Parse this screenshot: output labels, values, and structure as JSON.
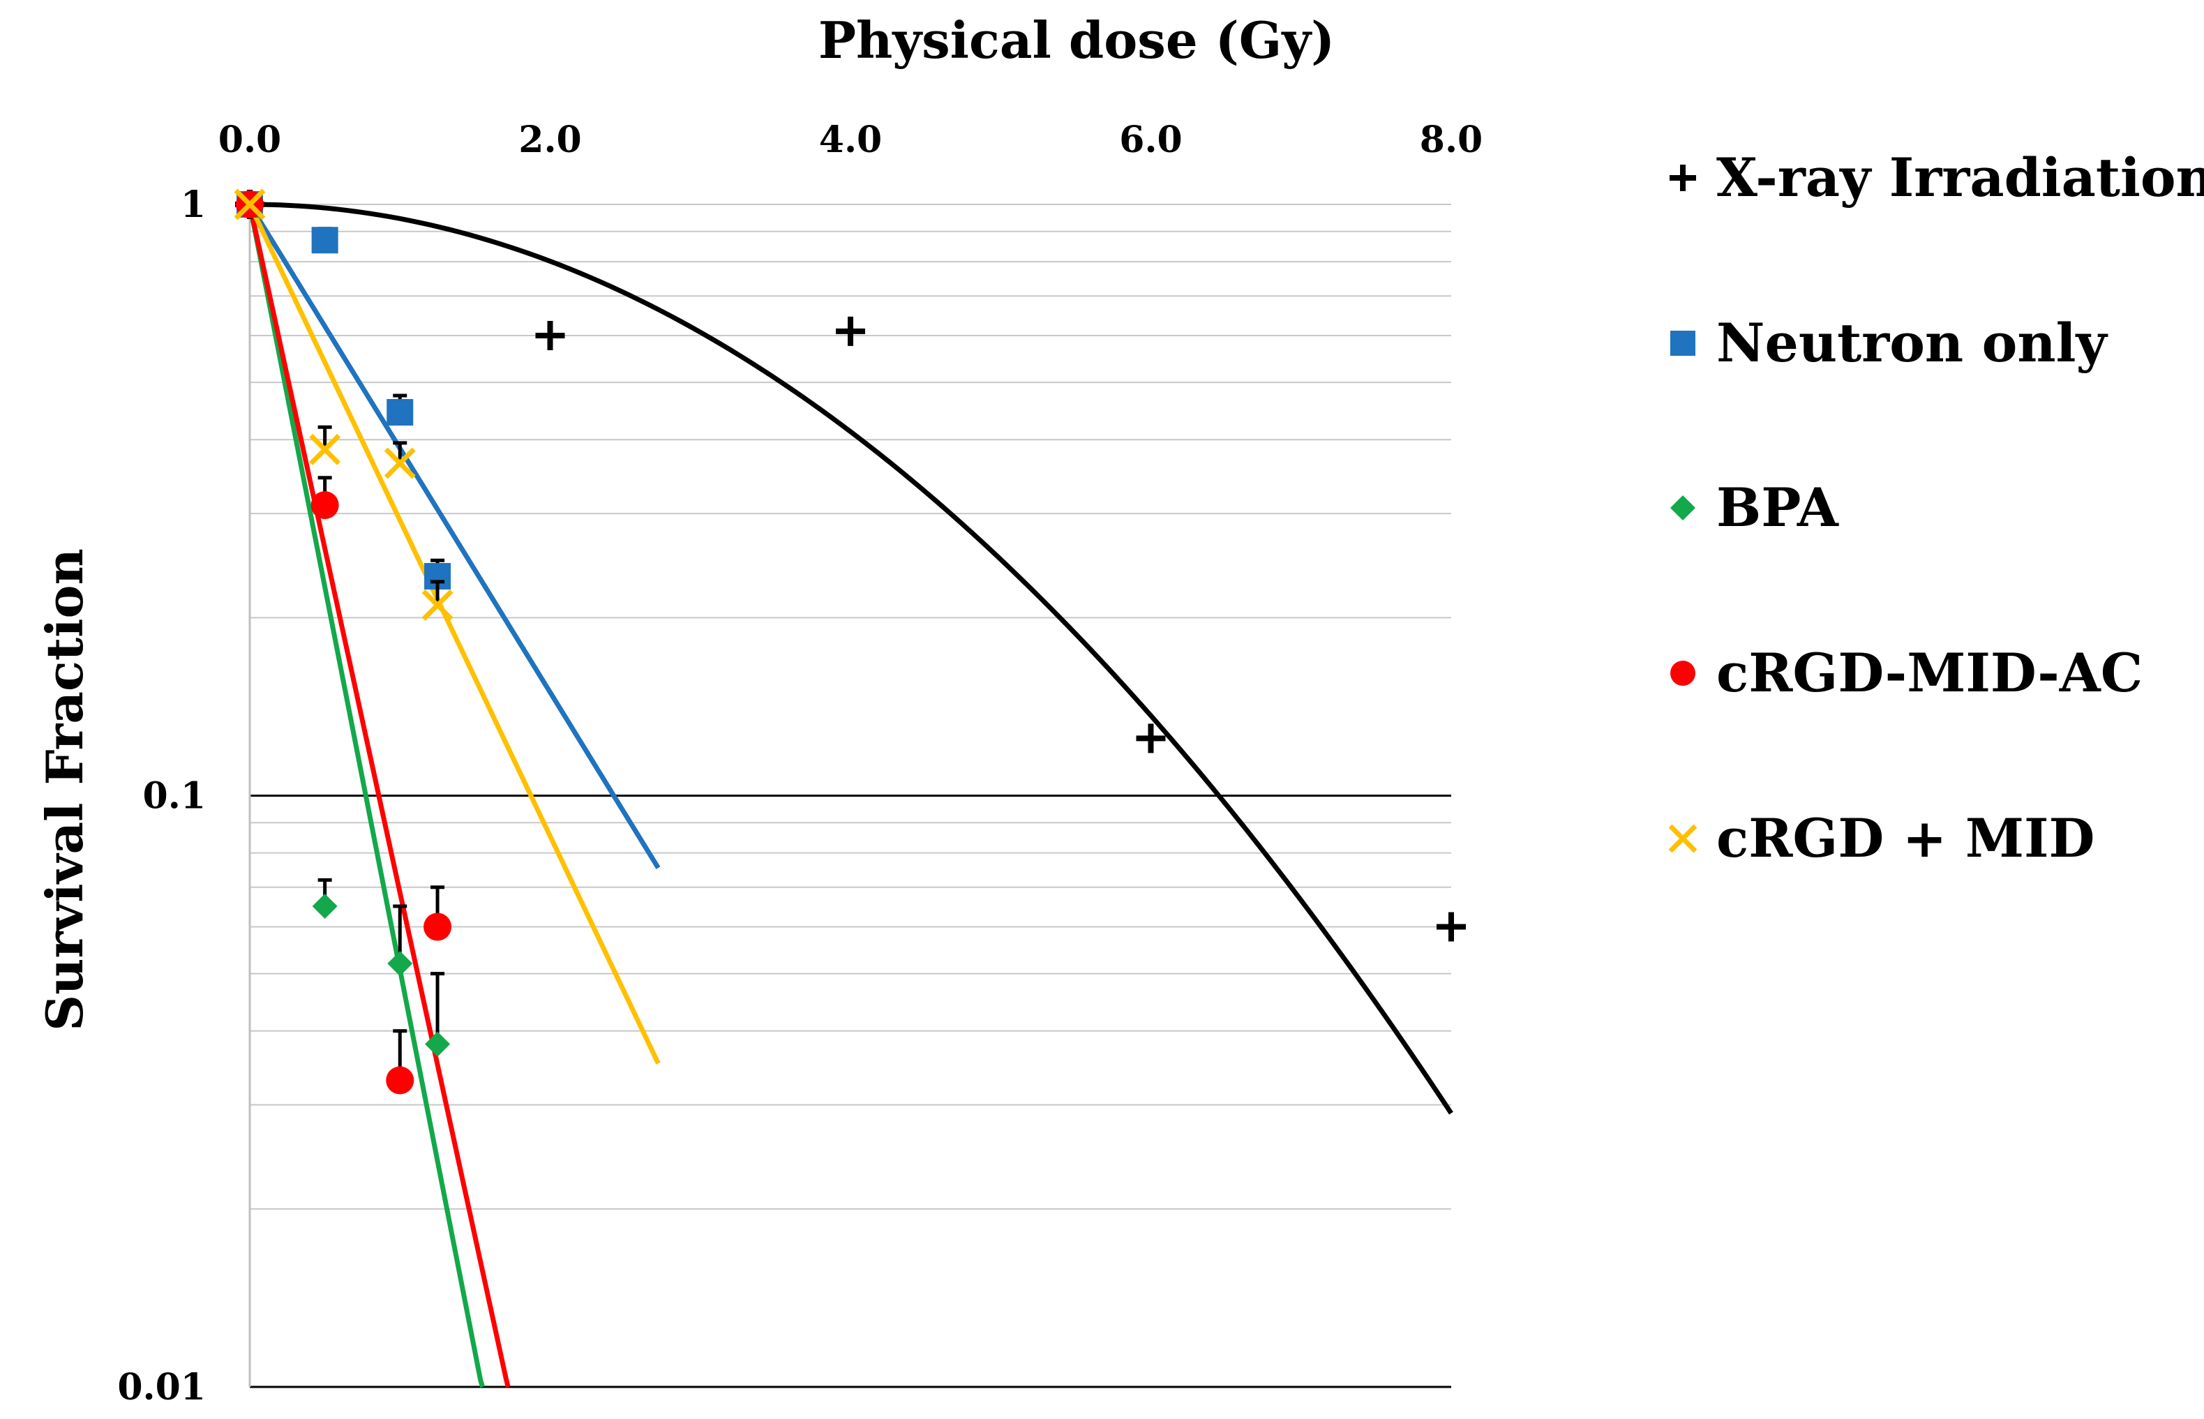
{
  "chart_data": {
    "type": "scatter",
    "title": "",
    "xlabel": "Physical dose (Gy)",
    "ylabel": "Survival Fraction",
    "xaxis_position": "top",
    "xlim": [
      0,
      8
    ],
    "ylim": [
      0.01,
      1
    ],
    "yscale": "log",
    "xticks": [
      0,
      2,
      4,
      6,
      8
    ],
    "xtick_labels": [
      "0.0",
      "2.0",
      "4.0",
      "6.0",
      "8.0"
    ],
    "yticks": [
      1,
      0.1,
      0.01
    ],
    "ytick_labels": [
      "1",
      "0.1",
      "0.01"
    ],
    "legend_position": "right",
    "series": [
      {
        "name": "X-ray Irradiation",
        "color": "#000000",
        "marker": "plus",
        "points": [
          [
            0,
            1.0
          ],
          [
            2.0,
            0.6
          ],
          [
            4.0,
            0.61
          ],
          [
            6.0,
            0.125
          ],
          [
            8.0,
            0.06
          ]
        ],
        "errors": [
          0,
          0,
          0,
          0,
          0
        ],
        "fit": {
          "model": "linear-quadratic",
          "alpha": 0.0,
          "beta": 0.0553,
          "x_range": [
            0,
            8
          ]
        }
      },
      {
        "name": "Neutron only",
        "color": "#1f73bf",
        "marker": "square",
        "points": [
          [
            0,
            1.0
          ],
          [
            0.5,
            0.87
          ],
          [
            1.0,
            0.445
          ],
          [
            1.25,
            0.235
          ]
        ],
        "errors": [
          0,
          0.04,
          0.03,
          0.015
        ],
        "fit": {
          "model": "exponential",
          "k": 0.95,
          "x_range": [
            0,
            2.72
          ]
        }
      },
      {
        "name": "BPA",
        "color": "#13a84a",
        "marker": "diamond",
        "points": [
          [
            0,
            1.0
          ],
          [
            0.5,
            0.065
          ],
          [
            1.0,
            0.052
          ],
          [
            1.25,
            0.038
          ]
        ],
        "errors": [
          0,
          0.007,
          0.013,
          0.012
        ],
        "fit": {
          "model": "exponential",
          "k": 2.98,
          "x_range": [
            0,
            1.55
          ]
        }
      },
      {
        "name": "cRGD-MID-AC",
        "color": "#ff0000",
        "marker": "circle",
        "points": [
          [
            0,
            1.0
          ],
          [
            0.5,
            0.31
          ],
          [
            1.0,
            0.033
          ],
          [
            1.25,
            0.06
          ]
        ],
        "errors": [
          0,
          0.035,
          0.007,
          0.01
        ],
        "fit": {
          "model": "exponential",
          "k": 2.68,
          "x_range": [
            0,
            1.72
          ]
        }
      },
      {
        "name": "cRGD + MID",
        "color": "#ffc000",
        "marker": "x",
        "points": [
          [
            0,
            1.0
          ],
          [
            0.5,
            0.385
          ],
          [
            1.0,
            0.365
          ],
          [
            1.25,
            0.21
          ]
        ],
        "errors": [
          0,
          0.035,
          0.03,
          0.02
        ],
        "fit": {
          "model": "exponential",
          "k": 1.23,
          "x_range": [
            0,
            2.72
          ]
        }
      }
    ]
  }
}
